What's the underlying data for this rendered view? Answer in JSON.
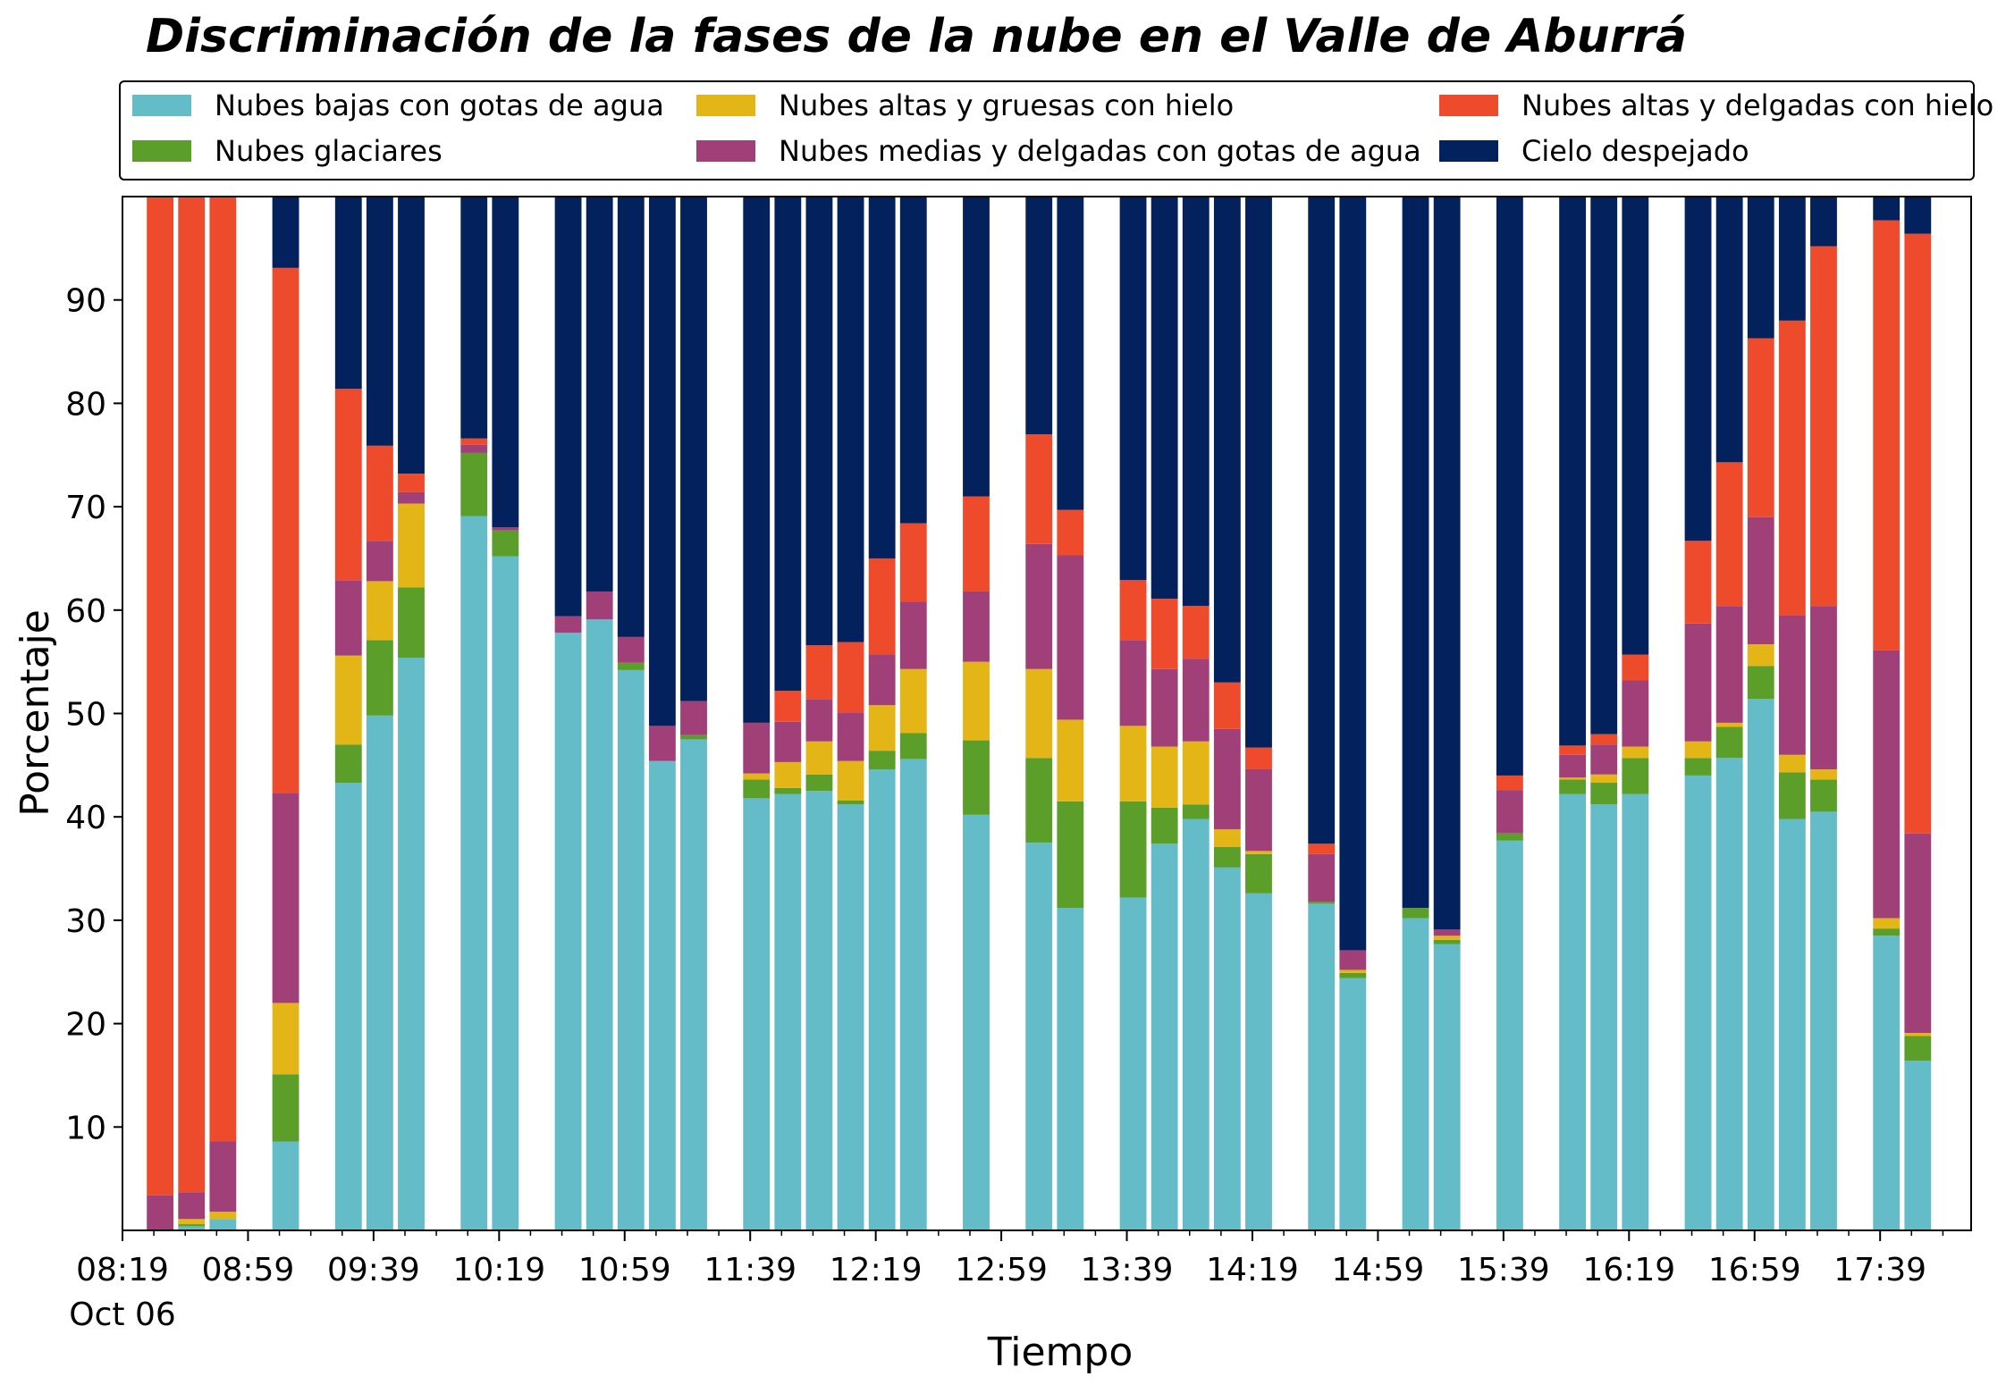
{
  "chart_data": {
    "type": "bar",
    "stacked": true,
    "title": "Discriminación de la fases de la nube en el Valle de Aburrá",
    "xlabel": "Tiempo",
    "ylabel": "Porcentaje",
    "ylim": [
      0,
      100
    ],
    "yticks": [
      10,
      20,
      30,
      40,
      50,
      60,
      70,
      80,
      90
    ],
    "grid": false,
    "legend_position": "top, above plot",
    "x_start_minutes": 499,
    "x_end_minutes": 1088,
    "bar_width_minutes": 8.5,
    "xticks": [
      {
        "minutes": 499,
        "label": "08:19",
        "sublabel": "Oct 06"
      },
      {
        "minutes": 539,
        "label": "08:59"
      },
      {
        "minutes": 579,
        "label": "09:39"
      },
      {
        "minutes": 619,
        "label": "10:19"
      },
      {
        "minutes": 659,
        "label": "10:59"
      },
      {
        "minutes": 699,
        "label": "11:39"
      },
      {
        "minutes": 739,
        "label": "12:19"
      },
      {
        "minutes": 779,
        "label": "12:59"
      },
      {
        "minutes": 819,
        "label": "13:39"
      },
      {
        "minutes": 859,
        "label": "14:19"
      },
      {
        "minutes": 899,
        "label": "14:59"
      },
      {
        "minutes": 939,
        "label": "15:39"
      },
      {
        "minutes": 979,
        "label": "16:19"
      },
      {
        "minutes": 1019,
        "label": "16:59"
      },
      {
        "minutes": 1059,
        "label": "17:39"
      }
    ],
    "minor_xticks": [
      509,
      519,
      529,
      549,
      559,
      569,
      589,
      599,
      609,
      629,
      639,
      649,
      669,
      679,
      689,
      709,
      719,
      729,
      749,
      759,
      769,
      789,
      799,
      809,
      829,
      839,
      849,
      869,
      879,
      889,
      909,
      919,
      929,
      949,
      959,
      969,
      989,
      999,
      1009,
      1029,
      1039,
      1049,
      1069,
      1079
    ],
    "series": [
      {
        "name": "Nubes bajas con gotas de agua",
        "color": "#63BCC8"
      },
      {
        "name": "Nubes glaciares",
        "color": "#5B9E2A"
      },
      {
        "name": "Nubes altas y gruesas con hielo",
        "color": "#E4B516"
      },
      {
        "name": "Nubes medias y delgadas con gotas de agua",
        "color": "#A13F78"
      },
      {
        "name": "Nubes altas y delgadas con hielo",
        "color": "#EE4B2C"
      },
      {
        "name": "Cielo despejado",
        "color": "#03215C"
      }
    ],
    "x_minutes": [
      511,
      521,
      531,
      551,
      571,
      581,
      591,
      611,
      621,
      641,
      651,
      661,
      671,
      681,
      701,
      711,
      721,
      731,
      741,
      751,
      771,
      791,
      801,
      821,
      831,
      841,
      851,
      861,
      881,
      891,
      911,
      921,
      941,
      961,
      971,
      981,
      1001,
      1011,
      1021,
      1031,
      1041,
      1061,
      1071
    ],
    "values": [
      [
        0,
        0.4,
        1.1,
        8.6,
        43.3,
        49.8,
        55.4,
        69.1,
        65.2,
        57.8,
        59.1,
        54.2,
        45.4,
        47.5,
        41.8,
        42.2,
        42.5,
        41.2,
        44.6,
        45.6,
        40.2,
        37.5,
        31.2,
        32.2,
        37.4,
        39.8,
        35.1,
        32.6,
        31.6,
        24.4,
        30.2,
        27.7,
        37.7,
        42.2,
        41.2,
        42.2,
        44.0,
        45.7,
        51.4,
        39.8,
        40.5,
        28.5,
        16.4
      ],
      [
        0,
        0.2,
        0,
        6.5,
        3.7,
        7.3,
        6.8,
        6.1,
        2.5,
        0,
        0,
        0.7,
        0,
        0.4,
        1.8,
        0.6,
        1.6,
        0.4,
        1.8,
        2.5,
        7.2,
        8.2,
        10.3,
        9.3,
        3.5,
        1.4,
        2.0,
        3.8,
        0.2,
        0.5,
        1.0,
        0.4,
        0.7,
        1.4,
        2.1,
        3.5,
        1.7,
        3.0,
        3.2,
        4.5,
        3.1,
        0.7,
        2.4
      ],
      [
        0,
        0.5,
        0.7,
        6.9,
        8.6,
        5.7,
        8.1,
        0,
        0,
        0,
        0,
        0,
        0,
        0,
        0.6,
        2.5,
        3.2,
        3.8,
        4.4,
        6.2,
        7.6,
        8.6,
        7.9,
        7.3,
        5.9,
        6.1,
        1.7,
        0.3,
        0,
        0.3,
        0,
        0.4,
        0,
        0.2,
        0.8,
        1.1,
        1.6,
        0.4,
        2.1,
        1.7,
        1.0,
        1.0,
        0.3
      ],
      [
        3.4,
        2.6,
        6.8,
        20.3,
        7.3,
        3.9,
        1.1,
        0.8,
        0.3,
        1.6,
        2.7,
        2.5,
        3.4,
        3.3,
        4.9,
        3.9,
        4.1,
        4.7,
        4.9,
        6.5,
        6.8,
        12.1,
        15.9,
        8.3,
        7.5,
        8.0,
        9.7,
        7.9,
        4.6,
        1.9,
        0,
        0.6,
        4.2,
        2.2,
        2.9,
        6.4,
        11.4,
        11.3,
        12.3,
        13.5,
        15.8,
        25.9,
        19.3
      ],
      [
        96.6,
        96.3,
        91.4,
        50.8,
        18.5,
        9.2,
        1.8,
        0.6,
        0,
        0,
        0,
        0,
        0,
        0,
        0,
        3.0,
        5.2,
        6.8,
        9.3,
        7.6,
        9.2,
        10.6,
        4.4,
        5.8,
        6.8,
        5.1,
        4.5,
        2.1,
        1.0,
        0,
        0,
        0,
        1.4,
        0.9,
        1.0,
        2.5,
        8.0,
        13.9,
        17.3,
        28.5,
        34.8,
        41.6,
        58.0
      ],
      [
        0,
        0,
        0,
        6.9,
        18.6,
        24.1,
        26.8,
        23.4,
        32.0,
        40.6,
        38.2,
        42.6,
        51.2,
        48.8,
        50.9,
        47.8,
        43.4,
        43.1,
        35.0,
        31.6,
        29.0,
        23.0,
        30.3,
        37.1,
        38.9,
        39.6,
        47.0,
        53.3,
        62.6,
        72.9,
        68.8,
        70.9,
        56.0,
        53.1,
        52.0,
        44.3,
        33.3,
        25.7,
        13.7,
        12.0,
        4.8,
        2.3,
        3.6
      ]
    ]
  }
}
